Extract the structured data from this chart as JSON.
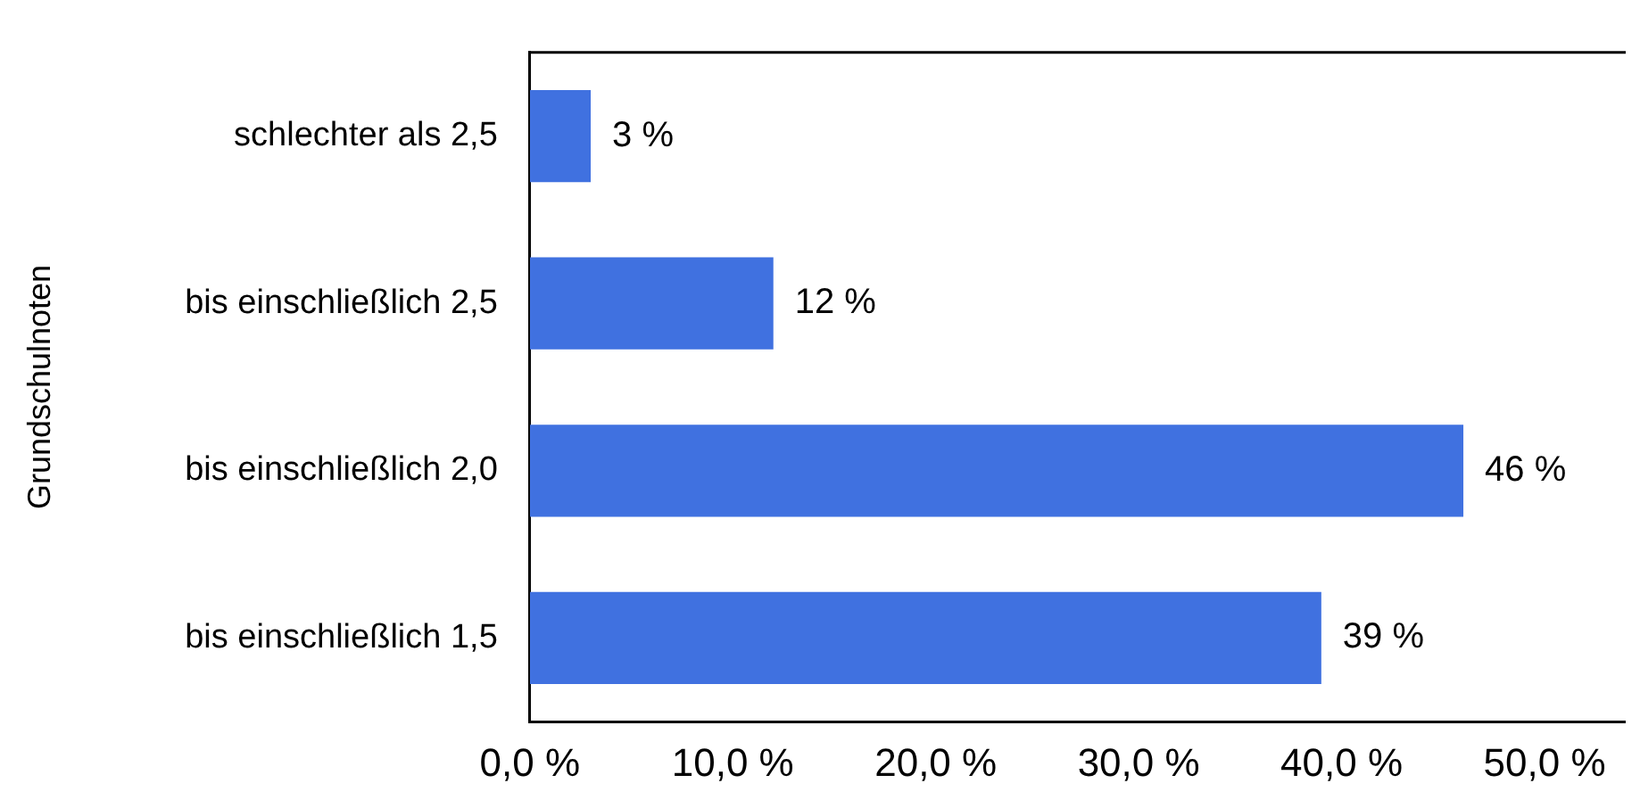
{
  "chart_data": {
    "type": "bar",
    "orientation": "horizontal",
    "ylabel": "Grundschulnoten",
    "categories": [
      "schlechter als 2,5",
      "bis einschließlich 2,5",
      "bis einschließlich 2,0",
      "bis einschließlich 1,5"
    ],
    "values": [
      3,
      12,
      46,
      39
    ],
    "value_labels": [
      "3 %",
      "12 %",
      "46 %",
      "39 %"
    ],
    "color": "#4071e0",
    "xlim": [
      0,
      54
    ],
    "xticks": [
      {
        "value": 0,
        "label": "0,0 %"
      },
      {
        "value": 10,
        "label": "10,0 %"
      },
      {
        "value": 20,
        "label": "20,0 %"
      },
      {
        "value": 30,
        "label": "30,0 %"
      },
      {
        "value": 40,
        "label": "40,0 %"
      },
      {
        "value": 50,
        "label": "50,0 %"
      }
    ]
  }
}
